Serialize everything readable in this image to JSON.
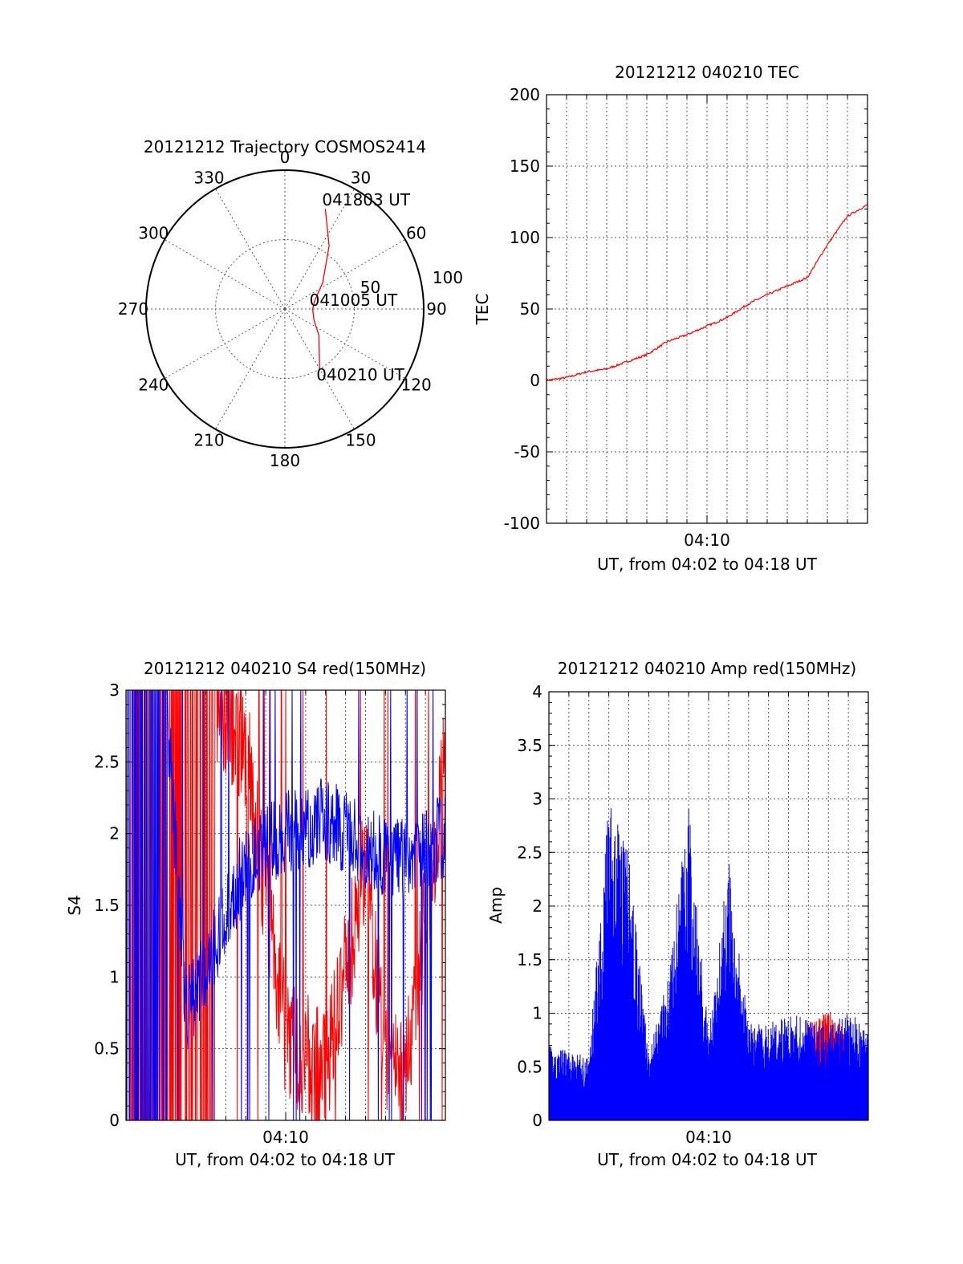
{
  "colors": {
    "red": "#ff0000",
    "blue": "#0000ff",
    "axis": "#000000",
    "grid": "#555555"
  },
  "chart_data": [
    {
      "type": "polar",
      "title": "20121212 Trajectory COSMOS2414",
      "azimuth_labels": [
        "0",
        "30",
        "60",
        "90",
        "120",
        "150",
        "180",
        "210",
        "240",
        "270",
        "300",
        "330"
      ],
      "radial_ticks": [
        "50",
        "100"
      ],
      "series": [
        {
          "color": "red",
          "points": [
            [
              22,
              20
            ],
            [
              35,
              40
            ],
            [
              55,
              60
            ],
            [
              75,
              70
            ],
            [
              90,
              72
            ],
            [
              110,
              70
            ],
            [
              128,
              62
            ],
            [
              150,
              45
            ]
          ]
        }
      ],
      "annotations": [
        {
          "text": "041803 UT",
          "az": 22,
          "el": 20
        },
        {
          "text": "041005 UT",
          "az": 90,
          "el": 72
        },
        {
          "text": "040210 UT",
          "az": 150,
          "el": 45
        }
      ]
    },
    {
      "type": "line",
      "title": "20121212 040210 TEC",
      "xlabel": "UT, from 04:02 to 04:18 UT",
      "ylabel": "TEC",
      "xlim": [
        "04:02",
        "04:18"
      ],
      "ylim": [
        -100,
        200
      ],
      "yticks": [
        "-100",
        "-50",
        "0",
        "50",
        "100",
        "150",
        "200"
      ],
      "xticks": [
        "04:10"
      ],
      "grid": true,
      "series": [
        {
          "color": "red",
          "x": [
            "04:02",
            "04:03",
            "04:04",
            "04:05",
            "04:06",
            "04:07",
            "04:08",
            "04:09",
            "04:10",
            "04:11",
            "04:12",
            "04:13",
            "04:14",
            "04:15",
            "04:16",
            "04:17",
            "04:18"
          ],
          "values": [
            0,
            2,
            6,
            8,
            13,
            18,
            27,
            32,
            38,
            44,
            53,
            60,
            66,
            72,
            95,
            115,
            123
          ]
        }
      ]
    },
    {
      "type": "line",
      "title": "20121212 040210 S4 red(150MHz)",
      "xlabel": "UT, from 04:02 to 04:18 UT",
      "ylabel": "S4",
      "xlim": [
        "04:02",
        "04:18"
      ],
      "ylim": [
        0,
        3
      ],
      "yticks": [
        "0",
        "0.5",
        "1",
        "1.5",
        "2",
        "2.5",
        "3"
      ],
      "xticks": [
        "04:10"
      ],
      "grid": true,
      "series": [
        {
          "color": "red",
          "x": [
            "04:02",
            "04:04",
            "04:06",
            "04:08",
            "04:10",
            "04:12",
            "04:14",
            "04:15",
            "04:16",
            "04:17",
            "04:18"
          ],
          "values": [
            3,
            3,
            3,
            2.6,
            0.6,
            0.3,
            1.8,
            0.4,
            0.3,
            1.4,
            2.5
          ]
        },
        {
          "color": "blue",
          "x": [
            "04:02",
            "04:04",
            "04:05",
            "04:07",
            "04:08",
            "04:10",
            "04:12",
            "04:14",
            "04:16",
            "04:18"
          ],
          "values": [
            3,
            3,
            0.75,
            1.4,
            1.8,
            2.0,
            2.1,
            1.9,
            1.8,
            2.0
          ]
        }
      ]
    },
    {
      "type": "bar",
      "title": "20121212 040210 Amp red(150MHz)",
      "xlabel": "UT, from 04:02 to 04:18 UT",
      "ylabel": "Amp",
      "xlim": [
        "04:02",
        "04:18"
      ],
      "ylim": [
        0,
        4
      ],
      "yticks": [
        "0",
        "0.5",
        "1",
        "1.5",
        "2",
        "2.5",
        "3",
        "3.5",
        "4"
      ],
      "xticks": [
        "04:10"
      ],
      "grid": true,
      "series": [
        {
          "color": "blue",
          "x": [
            "04:02",
            "04:04",
            "04:05",
            "04:06",
            "04:07",
            "04:08",
            "04:09",
            "04:10",
            "04:11",
            "04:12",
            "04:13",
            "04:14",
            "04:15",
            "04:16",
            "04:17",
            "04:18"
          ],
          "values": [
            0.7,
            0.6,
            3.0,
            2.5,
            0.6,
            1.4,
            2.95,
            0.8,
            2.5,
            0.9,
            0.9,
            1.0,
            0.95,
            0.9,
            1.0,
            0.9
          ]
        },
        {
          "color": "red",
          "x": [
            "04:15",
            "04:16",
            "04:17"
          ],
          "values": [
            0.9,
            1.05,
            0.8
          ]
        }
      ]
    }
  ]
}
